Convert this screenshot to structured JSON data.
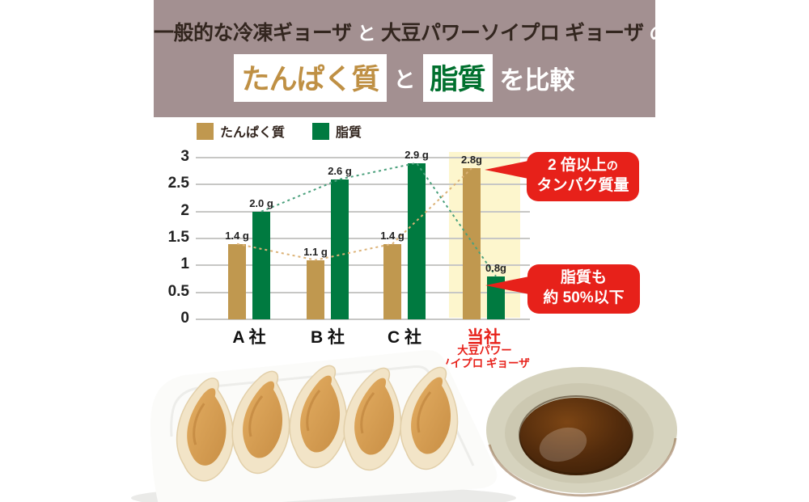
{
  "header": {
    "line1": {
      "seg1": "一般的な冷凍ギョーザ",
      "seg2": "と",
      "seg3": "大豆パワーソイプロ ギョーザ",
      "seg4": "の"
    },
    "line2": {
      "protein_label": "たんぱく質",
      "connector": "と",
      "fat_label": "脂質",
      "suffix": "を比較"
    },
    "bg_color": "#a39091"
  },
  "chart_data": {
    "type": "bar",
    "categories": [
      "A 社",
      "B 社",
      "C 社",
      "当社"
    ],
    "highlight_index": 3,
    "series": [
      {
        "name": "たんぱく質",
        "color": "#c0984f",
        "dash_color": "#dcb277",
        "values": [
          1.4,
          1.1,
          1.4,
          2.8
        ],
        "labels": [
          "1.4 g",
          "1.1 g",
          "1.4 g",
          "2.8g"
        ]
      },
      {
        "name": "脂質",
        "color": "#007a40",
        "dash_color": "#4aa07c",
        "values": [
          2.0,
          2.6,
          2.9,
          0.8
        ],
        "labels": [
          "2.0 g",
          "2.6 g",
          "2.9 g",
          "0.8g"
        ]
      }
    ],
    "ylim": [
      0,
      3
    ],
    "y_ticks": [
      {
        "value": 3,
        "label": "3"
      },
      {
        "value": 2.5,
        "label": "2.5"
      },
      {
        "value": 2,
        "label": "2"
      },
      {
        "value": 1.5,
        "label": "1.5"
      },
      {
        "value": 1,
        "label": "1"
      },
      {
        "value": 0.5,
        "label": "0.5"
      },
      {
        "value": 0,
        "label": "0"
      }
    ],
    "grid": true,
    "legend_position": "top-left",
    "highlight_band_color": "#fdf6cd",
    "connector_lines": "dashed"
  },
  "annotations": {
    "company_sub_label": {
      "line1": "大豆パワー",
      "line2": "ソイプロ ギョーザ"
    },
    "callout_protein": {
      "line1_main": "2 倍以上",
      "line1_small": "の",
      "line2": "タンパク質量"
    },
    "callout_fat": {
      "line1": "脂質も",
      "line2": "約 50%以下"
    }
  },
  "colors": {
    "accent_red": "#e7211a",
    "protein_tan": "#c0984f",
    "fat_green": "#007a40",
    "header_mauve": "#a39091",
    "gridline_gray": "#c7c7c5"
  }
}
